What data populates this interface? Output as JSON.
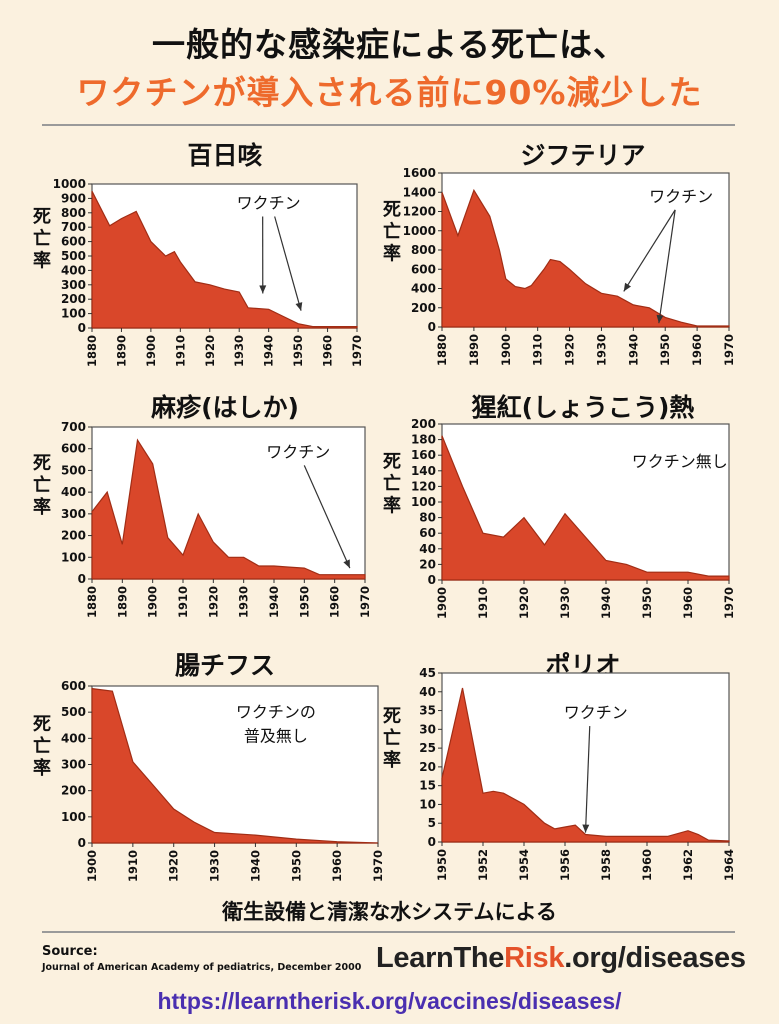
{
  "header": {
    "line1": "一般的な感染症による死亡は、",
    "line2": "ワクチンが導入される前に90%減少した"
  },
  "colors": {
    "fill": "#d9472a",
    "stroke": "#a12d15",
    "accent": "#ee6a2c",
    "url": "#4a2fb0"
  },
  "ylabel_chars": [
    "死",
    "亡",
    "率"
  ],
  "chart_data": [
    {
      "type": "area",
      "title": "百日咳",
      "ylim": [
        0,
        1000
      ],
      "yticks": [
        0,
        100,
        200,
        300,
        400,
        500,
        600,
        700,
        800,
        900,
        1000
      ],
      "xlim": [
        1880,
        1970
      ],
      "xticks": [
        1880,
        1890,
        1900,
        1910,
        1920,
        1930,
        1940,
        1950,
        1960,
        1970
      ],
      "x": [
        1880,
        1886,
        1890,
        1895,
        1900,
        1905,
        1908,
        1910,
        1915,
        1920,
        1925,
        1930,
        1933,
        1940,
        1945,
        1950,
        1955,
        1960,
        1970
      ],
      "y": [
        950,
        710,
        760,
        810,
        600,
        500,
        530,
        460,
        320,
        300,
        270,
        250,
        140,
        130,
        80,
        30,
        10,
        10,
        10
      ],
      "annotation": {
        "text": "ワクチン",
        "tx": 1940,
        "ty": 830,
        "arrows": [
          [
            1938,
            240
          ],
          [
            1951,
            120
          ]
        ]
      }
    },
    {
      "type": "area",
      "title": "ジフテリア",
      "ylim": [
        0,
        1600
      ],
      "yticks": [
        0,
        200,
        400,
        600,
        800,
        1000,
        1200,
        1400,
        1600
      ],
      "xlim": [
        1880,
        1970
      ],
      "xticks": [
        1880,
        1890,
        1900,
        1910,
        1920,
        1930,
        1940,
        1950,
        1960,
        1970
      ],
      "x": [
        1880,
        1885,
        1890,
        1895,
        1898,
        1900,
        1903,
        1906,
        1908,
        1912,
        1914,
        1917,
        1920,
        1925,
        1930,
        1935,
        1940,
        1945,
        1950,
        1955,
        1960,
        1970
      ],
      "y": [
        1400,
        950,
        1420,
        1150,
        800,
        500,
        420,
        400,
        430,
        600,
        700,
        680,
        600,
        450,
        350,
        320,
        230,
        200,
        100,
        50,
        10,
        10
      ],
      "annotation": {
        "text": "ワクチン",
        "tx": 1955,
        "ty": 1300,
        "arrows": [
          [
            1937,
            370
          ],
          [
            1948,
            40
          ]
        ]
      }
    },
    {
      "type": "area",
      "title": "麻疹(はしか)",
      "ylim": [
        0,
        700
      ],
      "yticks": [
        0,
        100,
        200,
        300,
        400,
        500,
        600,
        700
      ],
      "xlim": [
        1880,
        1970
      ],
      "xticks": [
        1880,
        1890,
        1900,
        1910,
        1920,
        1930,
        1940,
        1950,
        1960,
        1970
      ],
      "x": [
        1880,
        1885,
        1890,
        1895,
        1900,
        1905,
        1910,
        1915,
        1920,
        1925,
        1930,
        1935,
        1940,
        1945,
        1950,
        1955,
        1960,
        1970
      ],
      "y": [
        310,
        400,
        160,
        640,
        530,
        190,
        110,
        300,
        170,
        100,
        100,
        60,
        60,
        55,
        50,
        20,
        20,
        20
      ],
      "annotation": {
        "text": "ワクチン",
        "tx": 1948,
        "ty": 560,
        "arrows": [
          [
            1965,
            50
          ]
        ]
      }
    },
    {
      "type": "area",
      "title": "猩紅(しょうこう)熱",
      "ylim": [
        0,
        200
      ],
      "yticks": [
        0,
        20,
        40,
        60,
        80,
        100,
        120,
        140,
        160,
        180,
        200
      ],
      "xlim": [
        1900,
        1970
      ],
      "xticks": [
        1900,
        1910,
        1920,
        1930,
        1940,
        1950,
        1960,
        1970
      ],
      "x": [
        1900,
        1905,
        1910,
        1915,
        1920,
        1925,
        1930,
        1935,
        1940,
        1945,
        1950,
        1955,
        1960,
        1965,
        1970
      ],
      "y": [
        185,
        120,
        60,
        55,
        80,
        45,
        85,
        55,
        25,
        20,
        10,
        10,
        10,
        5,
        5
      ],
      "annotation": {
        "text": "ワクチン無し",
        "tx": 1958,
        "ty": 145,
        "arrows": []
      }
    },
    {
      "type": "area",
      "title": "腸チフス",
      "ylim": [
        0,
        600
      ],
      "yticks": [
        0,
        100,
        200,
        300,
        400,
        500,
        600
      ],
      "xlim": [
        1900,
        1970
      ],
      "xticks": [
        1900,
        1910,
        1920,
        1930,
        1940,
        1950,
        1960,
        1970
      ],
      "x": [
        1900,
        1905,
        1910,
        1915,
        1920,
        1925,
        1930,
        1940,
        1950,
        1960,
        1970
      ],
      "y": [
        590,
        580,
        310,
        220,
        130,
        80,
        40,
        30,
        15,
        5,
        0
      ],
      "annotation": {
        "text": "ワクチンの",
        "text2": "普及無し",
        "tx": 1945,
        "ty": 480,
        "arrows": []
      }
    },
    {
      "type": "area",
      "title": "ポリオ",
      "ylim": [
        0,
        45
      ],
      "yticks": [
        0,
        5,
        10,
        15,
        20,
        25,
        30,
        35,
        40,
        45
      ],
      "xlim": [
        1950,
        1964
      ],
      "xticks": [
        1950,
        1952,
        1954,
        1956,
        1958,
        1960,
        1962,
        1964
      ],
      "x": [
        1950,
        1951,
        1952,
        1952.5,
        1953,
        1954,
        1955,
        1955.5,
        1956,
        1956.5,
        1957,
        1958,
        1959,
        1960,
        1961,
        1962,
        1962.5,
        1963,
        1964
      ],
      "y": [
        17,
        41,
        13,
        13.5,
        13,
        10,
        5,
        3.5,
        4,
        4.5,
        2,
        1.5,
        1.5,
        1.5,
        1.5,
        3,
        2,
        0.5,
        0.3
      ],
      "annotation": {
        "text": "ワクチン",
        "tx": 1957.5,
        "ty": 33,
        "arrows": [
          [
            1957.0,
            2.5
          ]
        ]
      }
    }
  ],
  "footer": {
    "main": "衛生設備と清潔な水システムによる",
    "source_label": "Source:",
    "source_text": "Journal of American Academy of pediatrics, December 2000",
    "brand_a": "LearnThe",
    "brand_b": "Risk",
    "brand_c": ".org/diseases",
    "url": "https://learntherisk.org/vaccines/diseases/"
  }
}
